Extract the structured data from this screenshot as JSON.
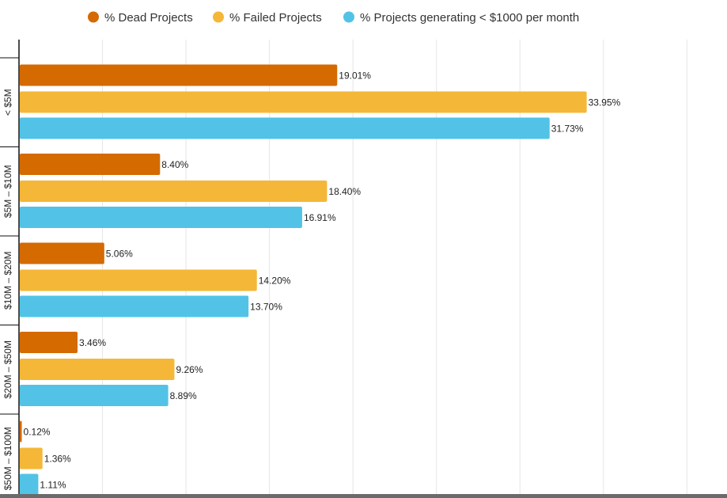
{
  "chart_data": {
    "type": "bar",
    "orientation": "horizontal",
    "categories": [
      "< $5M",
      "$5M – $10M",
      "$10M – $20M",
      "$20M – $50M",
      "$50M – $100M"
    ],
    "series": [
      {
        "name": "% Dead Projects",
        "color": "#d46a00",
        "values": [
          19.01,
          8.4,
          5.06,
          3.46,
          0.12
        ],
        "labels": [
          "19.01%",
          "8.40%",
          "5.06%",
          "3.46%",
          "0.12%"
        ]
      },
      {
        "name": "% Failed Projects",
        "color": "#f4b738",
        "values": [
          33.95,
          18.4,
          14.2,
          9.26,
          1.36
        ],
        "labels": [
          "33.95%",
          "18.40%",
          "14.20%",
          "9.26%",
          "1.36%"
        ]
      },
      {
        "name": "% Projects generating < $1000 per month",
        "color": "#52c3e6",
        "values": [
          31.73,
          16.91,
          13.7,
          8.89,
          1.11
        ],
        "labels": [
          "31.73%",
          "16.91%",
          "13.70%",
          "8.89%",
          "1.11%"
        ]
      }
    ],
    "xlim": [
      0,
      42.4
    ],
    "grid": true,
    "grid_step": 5,
    "legend_position": "top"
  }
}
